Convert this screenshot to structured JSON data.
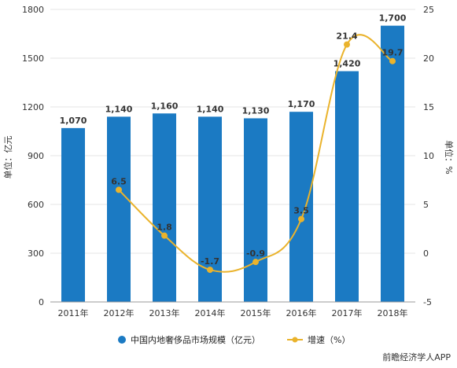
{
  "colors": {
    "bar": "#1b7ac3",
    "line": "#eab32c",
    "grid": "#e6e6e6",
    "axis": "#333333"
  },
  "chart_data": {
    "type": "bar",
    "categories": [
      "2011年",
      "2012年",
      "2013年",
      "2014年",
      "2015年",
      "2016年",
      "2017年",
      "2018年"
    ],
    "series": [
      {
        "name": "中国内地奢侈品市场规模（亿元）",
        "type": "bar",
        "axis": "left",
        "values": [
          1070,
          1140,
          1160,
          1140,
          1130,
          1170,
          1420,
          1700
        ],
        "labels": [
          "1,070",
          "1,140",
          "1,160",
          "1,140",
          "1,130",
          "1,170",
          "1,420",
          "1,700"
        ]
      },
      {
        "name": "增速（%）",
        "type": "line",
        "axis": "right",
        "values": [
          null,
          6.5,
          1.8,
          -1.7,
          -0.9,
          3.5,
          21.4,
          19.7
        ],
        "labels": [
          "",
          "6.5",
          "1.8",
          "-1.7",
          "-0.9",
          "3.5",
          "21.4",
          "19.7"
        ]
      }
    ],
    "yleft": {
      "label": "单位：亿元",
      "ylim": [
        0,
        1800
      ],
      "ticks": [
        "0",
        "300",
        "600",
        "900",
        "1200",
        "1500",
        "1800"
      ]
    },
    "yright": {
      "label": "单位：%",
      "ylim": [
        -5,
        25
      ],
      "ticks": [
        "-5",
        "0",
        "5",
        "10",
        "15",
        "20",
        "25"
      ]
    },
    "legend": "bottom",
    "grid": true
  },
  "source": "前瞻经济学人APP"
}
